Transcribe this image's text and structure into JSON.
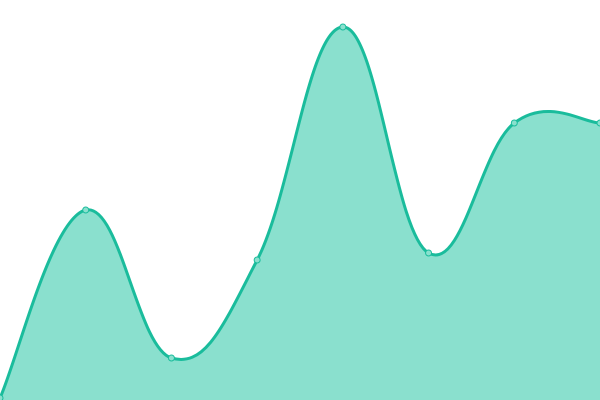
{
  "chart_data": {
    "type": "area",
    "x": [
      0,
      1,
      2,
      3,
      4,
      5,
      6,
      7
    ],
    "values": [
      2,
      190,
      42,
      140,
      373,
      147,
      277,
      277
    ],
    "ylim": [
      0,
      400
    ],
    "grid": false,
    "axes_visible": false,
    "curve": "smooth",
    "colors": {
      "line": "#1abc9c",
      "fill": "#8ae0ce",
      "marker": "#8ae0ce"
    }
  }
}
